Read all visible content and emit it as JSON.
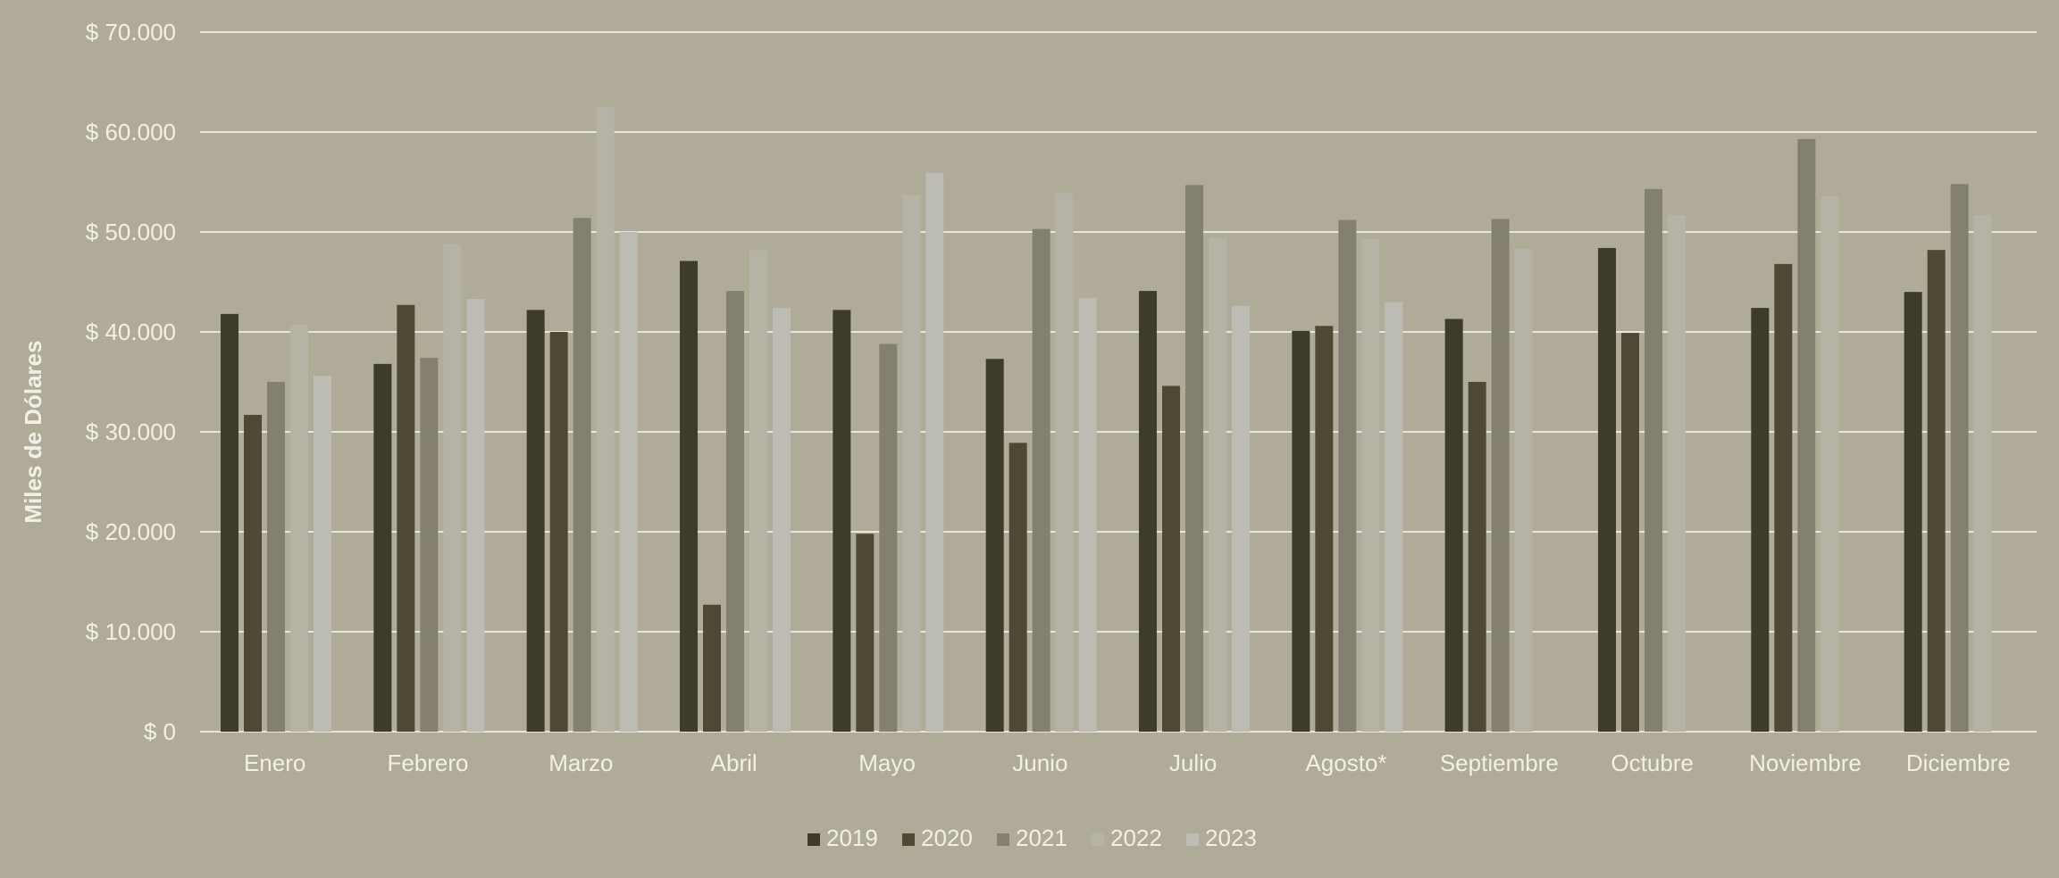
{
  "chart_data": {
    "type": "bar",
    "ylabel": "Miles de Dólares",
    "ylim": [
      0,
      70000
    ],
    "ytick_values": [
      0,
      10000,
      20000,
      30000,
      40000,
      50000,
      60000,
      70000
    ],
    "ytick_labels": [
      "$ 0",
      "$ 10.000",
      "$ 20.000",
      "$ 30.000",
      "$ 40.000",
      "$ 50.000",
      "$ 60.000",
      "$ 70.000"
    ],
    "grid": true,
    "legend_position": "bottom-center",
    "categories": [
      "Enero",
      "Febrero",
      "Marzo",
      "Abril",
      "Mayo",
      "Junio",
      "Julio",
      "Agosto*",
      "Septiembre",
      "Octubre",
      "Noviembre",
      "Diciembre"
    ],
    "series": [
      {
        "name": "2019",
        "color": "#3d3b2a",
        "values": [
          41800,
          36800,
          42200,
          47100,
          42200,
          37300,
          44100,
          40100,
          41300,
          48400,
          42400,
          44000
        ]
      },
      {
        "name": "2020",
        "color": "#4e4935",
        "values": [
          31700,
          42700,
          40000,
          12700,
          19800,
          28900,
          34600,
          40600,
          35000,
          39900,
          46800,
          48200
        ]
      },
      {
        "name": "2021",
        "color": "#838072",
        "values": [
          35000,
          37400,
          51400,
          44100,
          38800,
          50300,
          54700,
          51200,
          51300,
          54300,
          59300,
          54800
        ]
      },
      {
        "name": "2022",
        "color": "#b5b3a6",
        "values": [
          40700,
          48800,
          62500,
          48200,
          53700,
          53900,
          49400,
          49300,
          48300,
          51700,
          53600,
          51700
        ]
      },
      {
        "name": "2023",
        "color": "#bcbbb4",
        "values": [
          35600,
          43300,
          50000,
          42400,
          55900,
          43400,
          42600,
          43000,
          null,
          null,
          null,
          null
        ]
      }
    ]
  },
  "style": {
    "background": "#b0ab98",
    "grid_color": "#e8e6d8",
    "text_color": "#f1efe6"
  }
}
